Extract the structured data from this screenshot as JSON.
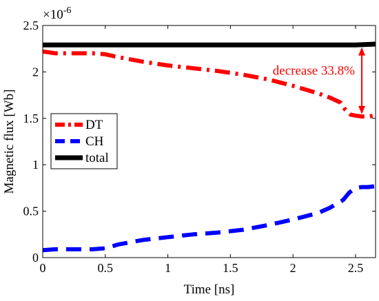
{
  "chart_data": {
    "type": "line",
    "xlabel": "Time [ns]",
    "ylabel": "Magnetic flux [Wb]",
    "y_exponent_base": "×10",
    "y_exponent_power": "-6",
    "xlim": [
      0,
      2.66
    ],
    "ylim": [
      0,
      2.5
    ],
    "xticks": [
      0,
      0.5,
      1,
      1.5,
      2,
      2.5
    ],
    "xtick_labels": [
      "0",
      "0.5",
      "1",
      "1.5",
      "2",
      "2.5"
    ],
    "yticks": [
      0,
      0.5,
      1,
      1.5,
      2,
      2.5
    ],
    "ytick_labels": [
      "0",
      "0.5",
      "1",
      "1.5",
      "2",
      "2.5"
    ],
    "grid": false,
    "legend_position": "center-left",
    "series": [
      {
        "name": "DT",
        "color": "#ff0000",
        "style": "dash-dot",
        "x": [
          0,
          0.1,
          0.2,
          0.3,
          0.4,
          0.5,
          0.6,
          0.8,
          1.0,
          1.2,
          1.4,
          1.6,
          1.8,
          2.0,
          2.2,
          2.3,
          2.38,
          2.42,
          2.46,
          2.5,
          2.55,
          2.6,
          2.66
        ],
        "values": [
          2.22,
          2.2,
          2.2,
          2.2,
          2.2,
          2.19,
          2.16,
          2.11,
          2.07,
          2.04,
          2.01,
          1.97,
          1.92,
          1.85,
          1.77,
          1.72,
          1.67,
          1.59,
          1.54,
          1.53,
          1.52,
          1.52,
          1.53
        ]
      },
      {
        "name": "CH",
        "color": "#0000ff",
        "style": "dashed",
        "x": [
          0,
          0.1,
          0.2,
          0.3,
          0.4,
          0.5,
          0.6,
          0.8,
          1.0,
          1.2,
          1.4,
          1.6,
          1.8,
          2.0,
          2.2,
          2.3,
          2.4,
          2.45,
          2.5,
          2.55,
          2.6,
          2.66
        ],
        "values": [
          0.08,
          0.09,
          0.09,
          0.09,
          0.09,
          0.1,
          0.14,
          0.19,
          0.22,
          0.25,
          0.27,
          0.3,
          0.35,
          0.41,
          0.48,
          0.54,
          0.62,
          0.7,
          0.75,
          0.76,
          0.76,
          0.77
        ]
      },
      {
        "name": "total",
        "color": "#000000",
        "style": "solid",
        "x": [
          0,
          0.5,
          1.0,
          1.5,
          2.0,
          2.5,
          2.66
        ],
        "values": [
          2.29,
          2.29,
          2.29,
          2.29,
          2.29,
          2.29,
          2.3
        ]
      }
    ],
    "annotation": {
      "text": "decrease 33.8%",
      "color": "#ff0000",
      "arrow_x": 2.55,
      "arrow_from": 2.28,
      "arrow_to": 1.53
    }
  }
}
